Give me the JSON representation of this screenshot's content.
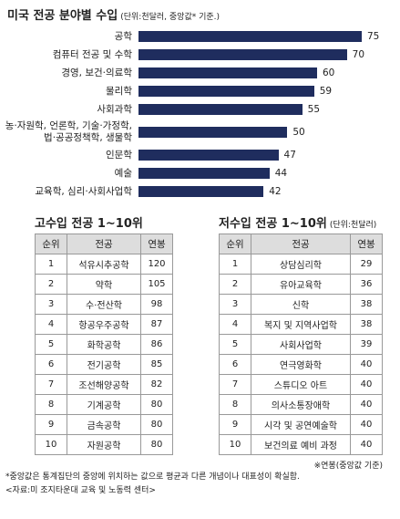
{
  "chart_data": {
    "type": "bar",
    "title": "미국 전공 분야별 수입",
    "subtitle": "(단위:천달러, 중앙값* 기준.)",
    "categories": [
      "공학",
      "컴퓨터 전공 및 수학",
      "경영, 보건·의료학",
      "물리학",
      "사회과학",
      "농·자원학, 언론학, 기술·가정학, 법·공공정책학, 생물학",
      "인문학",
      "예술",
      "교육학, 심리·사회사업학"
    ],
    "values": [
      75,
      70,
      60,
      59,
      55,
      50,
      47,
      44,
      42
    ],
    "color": "#1f2d5e"
  },
  "tables": [
    {
      "title": "고수입 전공 1~10위",
      "headers": [
        "순위",
        "전공",
        "연봉"
      ],
      "rows": [
        [
          1,
          "석유시추공학",
          120
        ],
        [
          2,
          "약학",
          105
        ],
        [
          3,
          "수·전산학",
          98
        ],
        [
          4,
          "항공우주공학",
          87
        ],
        [
          5,
          "화학공학",
          86
        ],
        [
          6,
          "전기공학",
          85
        ],
        [
          7,
          "조선해양공학",
          82
        ],
        [
          8,
          "기계공학",
          80
        ],
        [
          9,
          "금속공학",
          80
        ],
        [
          10,
          "자원공학",
          80
        ]
      ]
    },
    {
      "title": "저수입 전공 1~10위",
      "unit": "(단위:천달러)",
      "headers": [
        "순위",
        "전공",
        "연봉"
      ],
      "rows": [
        [
          1,
          "상담심리학",
          29
        ],
        [
          2,
          "유아교육학",
          36
        ],
        [
          3,
          "신학",
          38
        ],
        [
          4,
          "복지 및 지역사업학",
          38
        ],
        [
          5,
          "사회사업학",
          39
        ],
        [
          6,
          "연극영화학",
          40
        ],
        [
          7,
          "스튜디오 아트",
          40
        ],
        [
          8,
          "의사소통장애학",
          40
        ],
        [
          9,
          "시각 및 공연예술학",
          40
        ],
        [
          10,
          "보건의료 예비 과정",
          40
        ]
      ],
      "note": "※연봉(중앙값 기준)"
    }
  ],
  "footnotes": [
    "*중앙값은 통계집단의 중앙에 위치하는 값으로 평균과 다른 개념이나 대표성이 확실함.",
    "<자료:미 조지타운대 교육 및 노동력 센터>"
  ]
}
